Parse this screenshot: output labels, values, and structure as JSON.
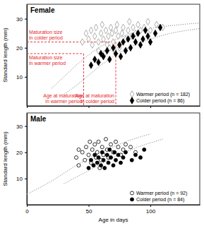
{
  "chart_data": [
    {
      "type": "scatter",
      "title": "Female",
      "y_label": "Standard length (mm)",
      "xlim": [
        0,
        140
      ],
      "ylim": [
        0,
        35
      ],
      "xticks": [
        0,
        50,
        100
      ],
      "yticks": [
        10,
        20,
        30
      ],
      "tick_labels": "y",
      "legend": "lower right",
      "series": [
        {
          "type": "line",
          "line_style": "dotted",
          "color": "#888888",
          "x": [
            20,
            30,
            40,
            50,
            60,
            70,
            80,
            90,
            100,
            110,
            120,
            130,
            140
          ],
          "values": [
            6,
            10,
            14,
            17.5,
            20.5,
            22.5,
            24.3,
            25.6,
            26.6,
            27.3,
            27.8,
            28.2,
            28.5
          ]
        },
        {
          "type": "line",
          "line_style": "dotted",
          "color": "#888888",
          "x": [
            30,
            40,
            50,
            60,
            70,
            80,
            90,
            100,
            110,
            120,
            130,
            140
          ],
          "values": [
            4,
            7,
            10.5,
            14,
            17,
            19.5,
            21.5,
            23,
            24.3,
            25.3,
            26,
            26.6
          ]
        },
        {
          "name": "Warmer period (n = 182)",
          "type": "scatter",
          "marker": "diamond-open",
          "color": "#999999",
          "x": [
            45,
            48,
            50,
            52,
            53,
            55,
            56,
            58,
            60,
            61,
            62,
            64,
            65,
            66,
            68,
            69,
            70,
            72,
            73,
            74,
            75,
            77,
            78,
            80,
            82,
            83,
            85,
            86,
            88,
            90,
            92,
            95,
            98,
            100,
            105,
            110,
            58,
            63,
            67,
            71
          ],
          "values": [
            22,
            25,
            23,
            26,
            21,
            24,
            27,
            22,
            25,
            28,
            23,
            26,
            21,
            24,
            27,
            25,
            22,
            26,
            28,
            24,
            20,
            25,
            27,
            23,
            26,
            29,
            24,
            27,
            25,
            28,
            26,
            27,
            29,
            26,
            28,
            27,
            19,
            18,
            20,
            19
          ]
        },
        {
          "name": "Colder period (n = 86)",
          "type": "scatter",
          "marker": "diamond",
          "color": "#000000",
          "x": [
            52,
            55,
            58,
            60,
            62,
            65,
            67,
            70,
            72,
            75,
            76,
            78,
            80,
            82,
            84,
            86,
            88,
            90,
            92,
            94,
            96,
            98,
            100,
            104,
            108
          ],
          "values": [
            14,
            16,
            15,
            18,
            17,
            19,
            16,
            20,
            18,
            21,
            17,
            22,
            19,
            23,
            20,
            24,
            22,
            25,
            21,
            23,
            26,
            24,
            22,
            25,
            27
          ]
        }
      ],
      "maturation": [
        {
          "age": 46,
          "size": 18,
          "color": "#e8262a",
          "size_label": "Maturation size in warmer period",
          "age_label": "Age at maturation in warmer period"
        },
        {
          "age": 72,
          "size": 22,
          "color": "#e8262a",
          "size_label": "Maturation size in colder period",
          "age_label": "Age at maturation in colder period"
        }
      ]
    },
    {
      "type": "scatter",
      "title": "Male",
      "y_label": "Standard length (mm)",
      "x_label": "Age in days",
      "xlim": [
        0,
        140
      ],
      "ylim": [
        0,
        35
      ],
      "xticks": [
        0,
        50,
        100
      ],
      "yticks": [
        10,
        20,
        30
      ],
      "legend": "lower right",
      "series": [
        {
          "type": "line",
          "line_style": "dotted",
          "color": "#888888",
          "x": [
            0,
            20,
            40,
            60,
            80,
            100
          ],
          "values": [
            4,
            9,
            15,
            20,
            24,
            27
          ]
        },
        {
          "type": "line",
          "line_style": "dotted",
          "color": "#888888",
          "x": [
            30,
            50,
            70,
            90,
            110
          ],
          "values": [
            8,
            13,
            18,
            22,
            25
          ]
        },
        {
          "name": "Warmer period (n = 92)",
          "type": "scatter",
          "marker": "circle-open",
          "color": "#000000",
          "x": [
            40,
            42,
            45,
            47,
            48,
            50,
            52,
            53,
            55,
            56,
            57,
            58,
            60,
            61,
            62,
            64,
            65,
            66,
            68,
            70,
            72,
            74,
            76,
            78,
            80,
            84,
            88,
            42,
            51,
            59
          ],
          "values": [
            18,
            15,
            20,
            17,
            22,
            19,
            16,
            21,
            23,
            18,
            20,
            24,
            17,
            22,
            19,
            25,
            21,
            18,
            23,
            20,
            24,
            22,
            19,
            21,
            23,
            22,
            20,
            21,
            24,
            14
          ]
        },
        {
          "name": "Colder period (n = 84)",
          "type": "scatter",
          "marker": "circle",
          "color": "#000000",
          "x": [
            50,
            52,
            54,
            55,
            57,
            58,
            60,
            61,
            62,
            63,
            65,
            66,
            67,
            68,
            70,
            71,
            72,
            74,
            76,
            78,
            80,
            85,
            88,
            92,
            95
          ],
          "values": [
            14,
            17,
            15,
            19,
            16,
            18,
            15,
            20,
            17,
            14,
            19,
            16,
            21,
            18,
            15,
            20,
            17,
            19,
            16,
            18,
            20,
            17,
            19,
            18,
            21
          ]
        }
      ]
    }
  ]
}
